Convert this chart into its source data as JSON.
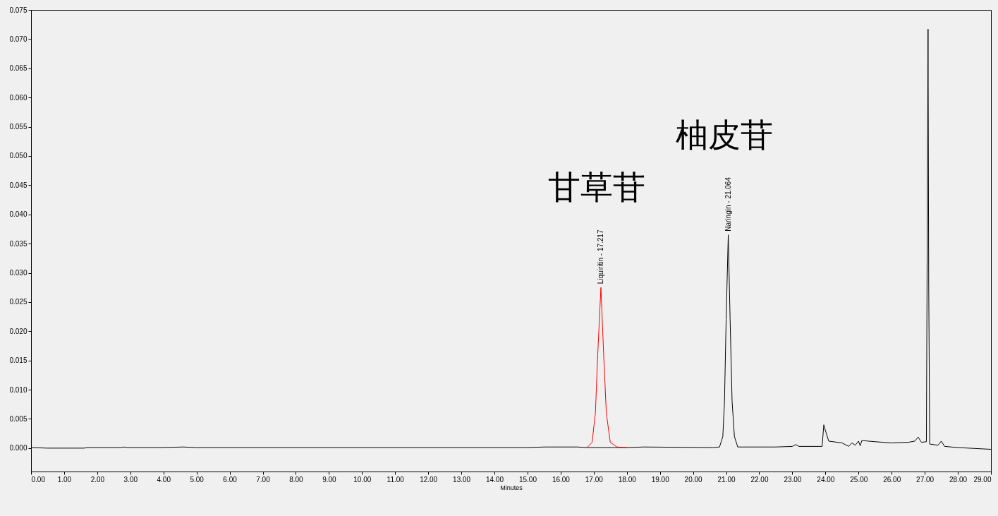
{
  "chart_data": {
    "type": "line",
    "xlabel": "Minutes",
    "xlim": [
      0,
      29
    ],
    "ylim": [
      -0.004,
      0.075
    ],
    "xticks": [
      {
        "value": 0,
        "label": "0.00"
      },
      {
        "value": 1,
        "label": "1.00"
      },
      {
        "value": 2,
        "label": "2.00"
      },
      {
        "value": 3,
        "label": "3.00"
      },
      {
        "value": 4,
        "label": "4.00"
      },
      {
        "value": 5,
        "label": "5.00"
      },
      {
        "value": 6,
        "label": "6.00"
      },
      {
        "value": 7,
        "label": "7.00"
      },
      {
        "value": 8,
        "label": "8.00"
      },
      {
        "value": 9,
        "label": "9.00"
      },
      {
        "value": 10,
        "label": "10.00"
      },
      {
        "value": 11,
        "label": "11.00"
      },
      {
        "value": 12,
        "label": "12.00"
      },
      {
        "value": 13,
        "label": "13.00"
      },
      {
        "value": 14,
        "label": "14.00"
      },
      {
        "value": 15,
        "label": "15.00"
      },
      {
        "value": 16,
        "label": "16.00"
      },
      {
        "value": 17,
        "label": "17.00"
      },
      {
        "value": 18,
        "label": "18.00"
      },
      {
        "value": 19,
        "label": "19.00"
      },
      {
        "value": 20,
        "label": "20.00"
      },
      {
        "value": 21,
        "label": "21.00"
      },
      {
        "value": 22,
        "label": "22.00"
      },
      {
        "value": 23,
        "label": "23.00"
      },
      {
        "value": 24,
        "label": "24.00"
      },
      {
        "value": 25,
        "label": "25.00"
      },
      {
        "value": 26,
        "label": "26.00"
      },
      {
        "value": 27,
        "label": "27.00"
      },
      {
        "value": 28,
        "label": "28.00"
      },
      {
        "value": 29,
        "label": "29.00"
      }
    ],
    "yticks": [
      {
        "value": 0,
        "label": "0.000"
      },
      {
        "value": 0.005,
        "label": "0.005"
      },
      {
        "value": 0.01,
        "label": "0.010"
      },
      {
        "value": 0.015,
        "label": "0.015"
      },
      {
        "value": 0.02,
        "label": "0.020"
      },
      {
        "value": 0.025,
        "label": "0.025"
      },
      {
        "value": 0.03,
        "label": "0.030"
      },
      {
        "value": 0.035,
        "label": "0.035"
      },
      {
        "value": 0.04,
        "label": "0.040"
      },
      {
        "value": 0.045,
        "label": "0.045"
      },
      {
        "value": 0.05,
        "label": "0.050"
      },
      {
        "value": 0.055,
        "label": "0.055"
      },
      {
        "value": 0.06,
        "label": "0.060"
      },
      {
        "value": 0.065,
        "label": "0.065"
      },
      {
        "value": 0.07,
        "label": "0.070"
      },
      {
        "value": 0.075,
        "label": "0.075"
      }
    ],
    "series": [
      {
        "color": "#000000",
        "x": [
          0,
          0.5,
          1.6,
          1.7,
          2.7,
          2.8,
          2.9,
          3.9,
          4.6,
          5,
          15,
          15.5,
          16.5,
          16.8,
          18,
          18.5,
          20.6,
          20.8,
          20.9,
          20.95,
          21,
          21.064,
          21.12,
          21.18,
          21.25,
          21.35,
          22.5,
          23,
          23.1,
          23.2,
          23.9,
          23.95,
          24,
          24.1,
          24.5,
          24.7,
          24.8,
          24.9,
          25,
          25.05,
          25.1,
          25.5,
          26,
          26.5,
          26.7,
          26.8,
          26.9,
          27.05,
          27.1,
          27.12,
          27.15,
          27.4,
          27.5,
          27.6,
          28,
          29
        ],
        "values": [
          0.0001,
          0,
          0,
          0.0001,
          0.0001,
          0.0002,
          0.0001,
          0.0001,
          0.0002,
          0.0001,
          0.0001,
          0.0002,
          0.0002,
          0.0001,
          0.0001,
          0.0002,
          0.0001,
          0.0002,
          0.002,
          0.008,
          0.022,
          0.0365,
          0.022,
          0.008,
          0.002,
          0.0002,
          0.0002,
          0.0003,
          0.0006,
          0.0003,
          0.0003,
          0.004,
          0.003,
          0.0012,
          0.0009,
          0.0003,
          0.0009,
          0.0005,
          0.0012,
          0.0004,
          0.0013,
          0.0011,
          0.0009,
          0.001,
          0.0012,
          0.0019,
          0.001,
          0.0011,
          0.0717,
          0.028,
          0.0007,
          0.0005,
          0.0012,
          0.0003,
          0.0001,
          -0.0002
        ]
      },
      {
        "color": "#ff0000",
        "x": [
          16.8,
          16.95,
          17.05,
          17.12,
          17.217,
          17.3,
          17.38,
          17.5,
          17.7,
          18
        ],
        "values": [
          0.0001,
          0.001,
          0.006,
          0.016,
          0.0275,
          0.016,
          0.006,
          0.001,
          0.0002,
          0.0001
        ]
      }
    ],
    "annotations": [
      {
        "text": "Liquiritin - 17.217",
        "x": 17.217,
        "y": 0.0275
      },
      {
        "text": "Naringin - 21.064",
        "x": 21.064,
        "y": 0.0365
      },
      "甘草苷",
      "柚皮苷"
    ]
  }
}
